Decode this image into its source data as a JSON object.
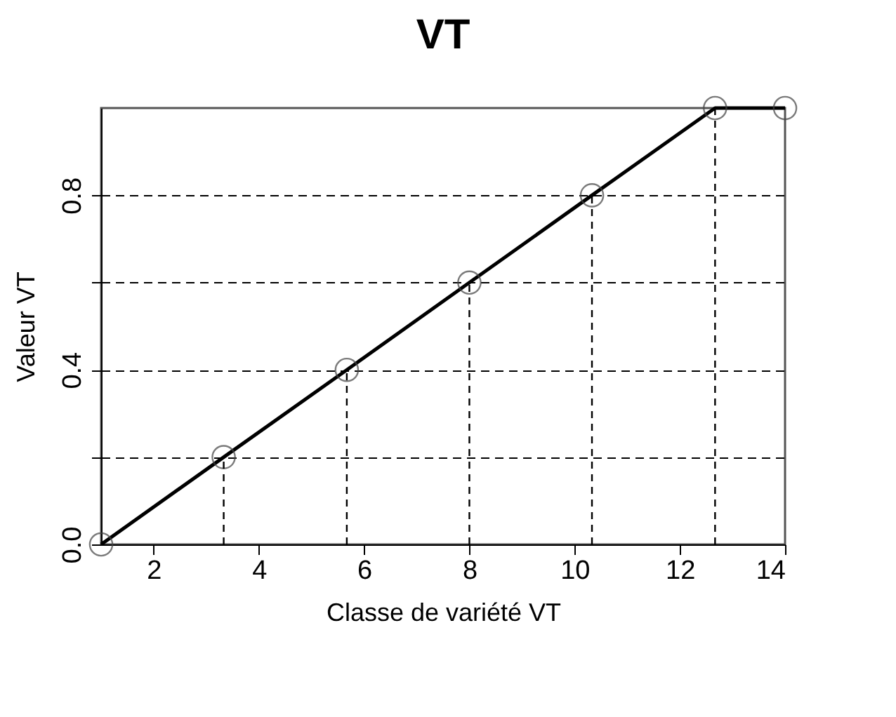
{
  "chart_data": {
    "type": "line",
    "title": "VT",
    "xlabel": "Classe de variété VT",
    "ylabel": "Valeur  VT",
    "x": [
      1,
      3.33,
      5.67,
      8,
      10.33,
      12.67,
      14
    ],
    "series": [
      {
        "color": "#000000",
        "values": [
          0,
          0.2,
          0.4,
          0.6,
          0.8,
          1,
          1
        ]
      },
      {
        "color": "#000000",
        "x": [
          3.33,
          3.33
        ],
        "values": [
          0,
          0.2
        ],
        "line_style": "dashed",
        "marker": "none"
      },
      {
        "color": "#000000",
        "x": [
          5.67,
          5.67
        ],
        "values": [
          0,
          0.4
        ],
        "line_style": "dashed",
        "marker": "none"
      },
      {
        "color": "#000000",
        "x": [
          8,
          8
        ],
        "values": [
          0,
          0.6
        ],
        "line_style": "dashed",
        "marker": "none"
      },
      {
        "color": "#000000",
        "x": [
          10.33,
          10.33
        ],
        "values": [
          0,
          0.8
        ],
        "line_style": "dashed",
        "marker": "none"
      },
      {
        "color": "#000000",
        "x": [
          12.67,
          12.67
        ],
        "values": [
          0,
          1
        ],
        "line_style": "dashed",
        "marker": "none"
      }
    ],
    "xlim": [
      1,
      14
    ],
    "xticks": [
      2,
      4,
      6,
      8,
      10,
      12,
      14
    ],
    "ylim": [
      0,
      1
    ],
    "yticks": [
      {
        "value": 0,
        "label": "0.0"
      },
      {
        "value": 0.2,
        "label": null
      },
      {
        "value": 0.4,
        "label": "0.4"
      },
      {
        "value": 0.6,
        "label": null
      },
      {
        "value": 0.8,
        "label": "0.8"
      }
    ],
    "grid": "y",
    "marker": "circle",
    "line_style": "solid"
  }
}
